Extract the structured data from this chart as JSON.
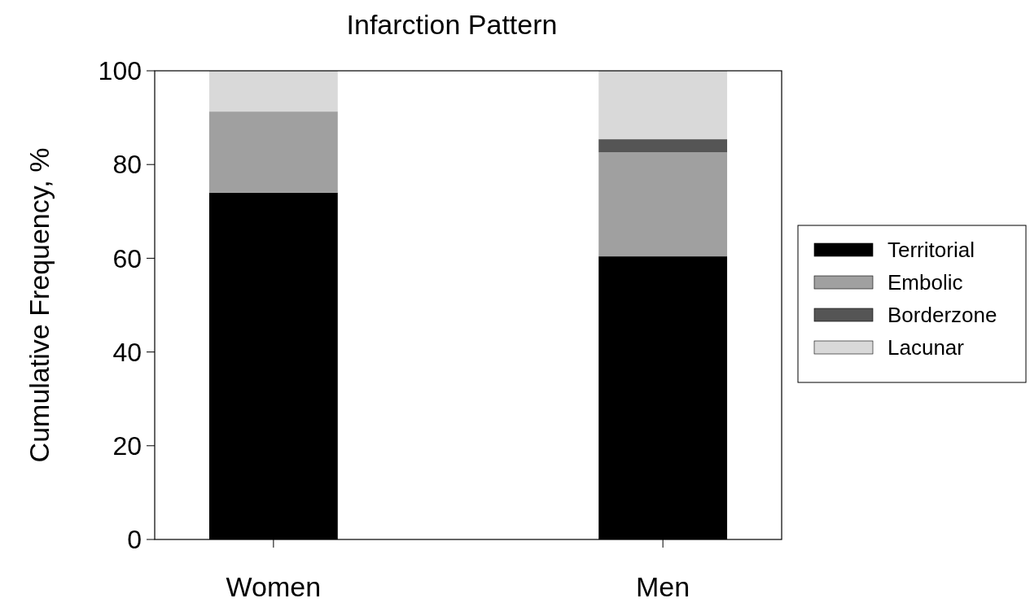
{
  "chart_data": {
    "type": "bar",
    "title": "Infarction Pattern",
    "ylabel": "Cumulative Frequency, %",
    "categories": [
      "Women",
      "Men"
    ],
    "stacked": true,
    "series": [
      {
        "name": "Territorial",
        "color": "#000000",
        "values": [
          74,
          60.4
        ]
      },
      {
        "name": "Embolic",
        "color": "#a0a0a0",
        "values": [
          17.3,
          22.2
        ]
      },
      {
        "name": "Borderzone",
        "color": "#555555",
        "values": [
          0,
          2.8
        ]
      },
      {
        "name": "Lacunar",
        "color": "#d9d9d9",
        "values": [
          8.7,
          14.6
        ]
      }
    ],
    "ylim": [
      0,
      100
    ],
    "yticks": [
      0,
      20,
      40,
      60,
      80,
      100
    ],
    "grid": false,
    "legend": "right"
  }
}
